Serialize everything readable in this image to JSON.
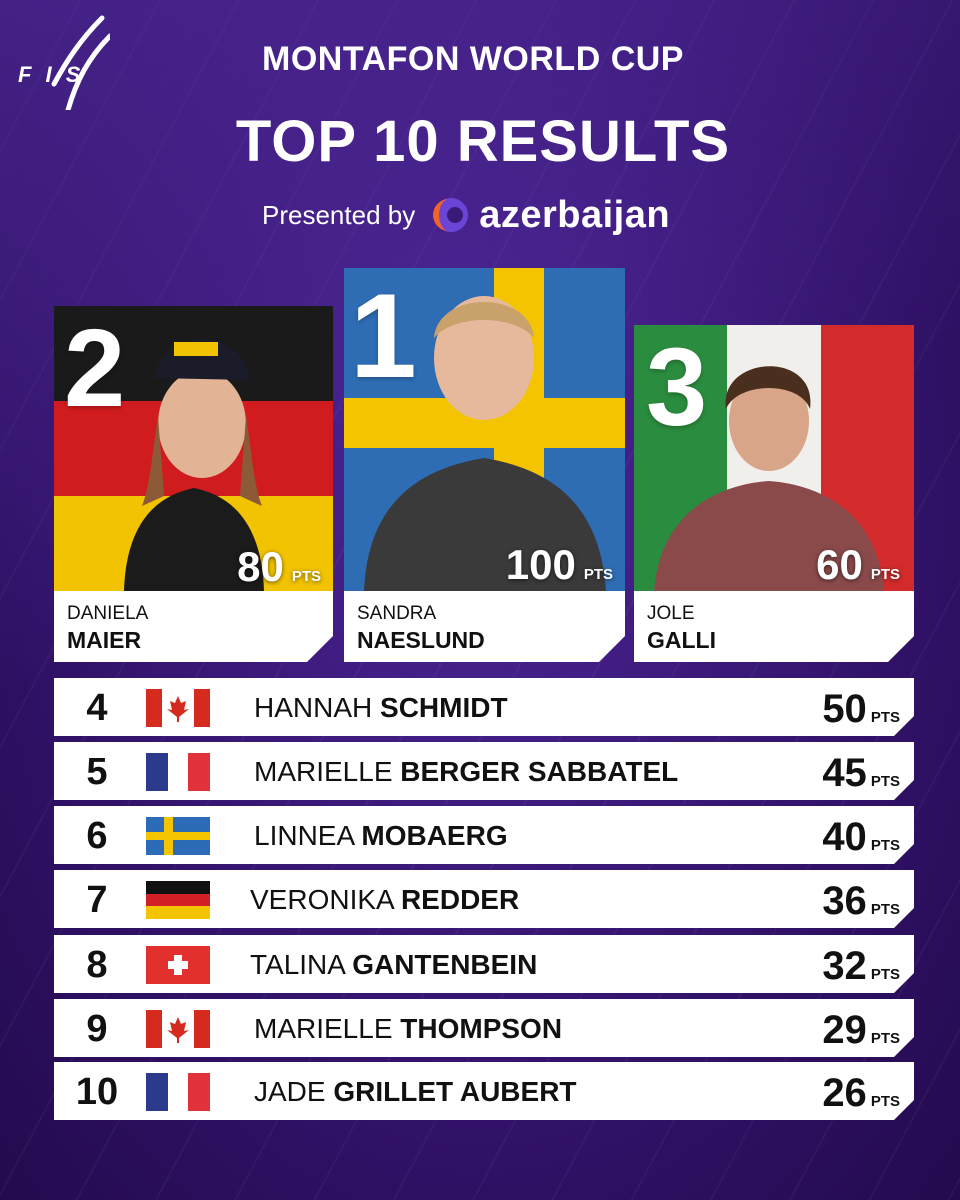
{
  "logo": {
    "text": "F I S"
  },
  "header": {
    "title": "MONTAFON WORLD CUP",
    "subtitle": "TOP 10 RESULTS",
    "presented_by": "Presented by",
    "sponsor": "azerbaijan"
  },
  "podium": [
    {
      "rank": "2",
      "first_name": "DANIELA",
      "last_name": "MAIER",
      "points": "80",
      "unit": "PTS",
      "country_flag": "germany-flag"
    },
    {
      "rank": "1",
      "first_name": "SANDRA",
      "last_name": "NAESLUND",
      "points": "100",
      "unit": "PTS",
      "country_flag": "sweden-flag"
    },
    {
      "rank": "3",
      "first_name": "JOLE",
      "last_name": "GALLI",
      "points": "60",
      "unit": "PTS",
      "country_flag": "italy-flag"
    }
  ],
  "results": [
    {
      "rank": "4",
      "flag": "canada-flag",
      "first": "HANNAH",
      "last": "SCHMIDT",
      "points": "50",
      "unit": "PTS"
    },
    {
      "rank": "5",
      "flag": "france-flag",
      "first": "MARIELLE",
      "last": "BERGER SABBATEL",
      "points": "45",
      "unit": "PTS"
    },
    {
      "rank": "6",
      "flag": "sweden-flag",
      "first": "LINNEA",
      "last": "MOBAERG",
      "points": "40",
      "unit": "PTS"
    },
    {
      "rank": "7",
      "flag": "germany-flag",
      "first": "VERONIKA",
      "last": "REDDER",
      "points": "36",
      "unit": "PTS"
    },
    {
      "rank": "8",
      "flag": "switzerland-flag",
      "first": "TALINA",
      "last": "GANTENBEIN",
      "points": "32",
      "unit": "PTS"
    },
    {
      "rank": "9",
      "flag": "canada-flag",
      "first": "MARIELLE",
      "last": "THOMPSON",
      "points": "29",
      "unit": "PTS"
    },
    {
      "rank": "10",
      "flag": "france-flag",
      "first": "JADE",
      "last": "GRILLET AUBERT",
      "points": "26",
      "unit": "PTS"
    }
  ],
  "colors": {
    "background": "#3a1a78",
    "card": "#ffffff",
    "text": "#111111",
    "brand_orange": "#f0642a",
    "brand_purple": "#6b46d6"
  }
}
